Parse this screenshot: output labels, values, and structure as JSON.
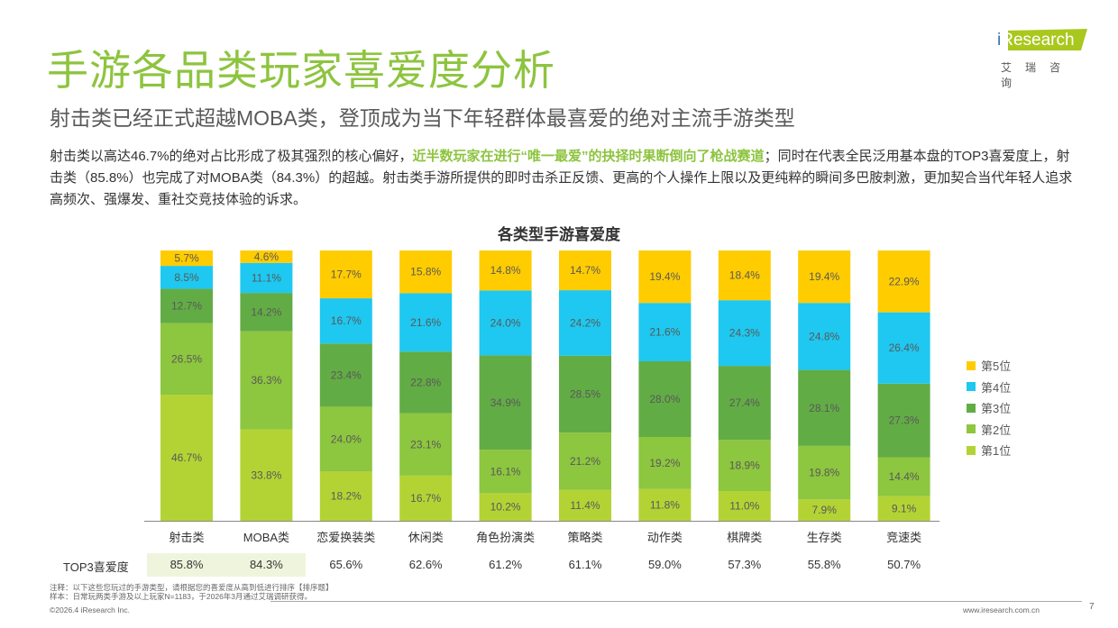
{
  "header": {
    "title": "手游各品类玩家喜爱度分析",
    "subtitle": "射击类已经正式超越MOBA类，登顶成为当下年轻群体最喜爱的绝对主流手游类型",
    "body_1": "射击类以高达46.7%的绝对占比形成了极其强烈的核心偏好，",
    "body_highlight": "近半数玩家在进行“唯一最爱”的抉择时果断倒向了枪战赛道",
    "body_2": "；同时在代表全民泛用基本盘的TOP3喜爱度上，射击类（85.8%）也完成了对MOBA类（84.3%）的超越。射击类手游所提供的即时击杀正反馈、更高的个人操作上限以及更纯粹的瞬间多巴胺刺激，更加契合当代年轻人追求高频次、强爆发、重社交竞技体验的诉求。"
  },
  "logo": {
    "brand": "iResearch",
    "cn": "艾瑞咨询"
  },
  "chart_data": {
    "type": "bar",
    "stacked": true,
    "title": "各类型手游喜爱度",
    "ylim": [
      0,
      100
    ],
    "grid": false,
    "legend_position": "right",
    "categories": [
      "射击类",
      "MOBA类",
      "恋爱换装类",
      "休闲类",
      "角色扮演类",
      "策略类",
      "动作类",
      "棋牌类",
      "生存类",
      "竞速类"
    ],
    "series": [
      {
        "name": "第1位",
        "color": "#B3D335",
        "values": [
          46.7,
          33.8,
          18.2,
          16.7,
          10.2,
          11.4,
          11.8,
          11.0,
          7.9,
          9.1
        ]
      },
      {
        "name": "第2位",
        "color": "#8DC63F",
        "values": [
          26.5,
          36.3,
          24.0,
          23.1,
          16.1,
          21.2,
          19.2,
          18.9,
          19.8,
          14.4
        ]
      },
      {
        "name": "第3位",
        "color": "#62AC45",
        "values": [
          12.7,
          14.2,
          23.4,
          22.8,
          34.9,
          28.5,
          28.0,
          27.4,
          28.1,
          27.3
        ]
      },
      {
        "name": "第4位",
        "color": "#1EC8F0",
        "values": [
          8.5,
          11.1,
          16.7,
          21.6,
          24.0,
          24.2,
          21.6,
          24.3,
          24.8,
          26.4
        ]
      },
      {
        "name": "第5位",
        "color": "#FFCC00",
        "values": [
          5.7,
          4.6,
          17.7,
          15.8,
          14.8,
          14.7,
          19.4,
          18.4,
          19.4,
          22.9
        ]
      }
    ],
    "top3": {
      "label": "TOP3喜爱度",
      "values": [
        "85.8%",
        "84.3%",
        "65.6%",
        "62.6%",
        "61.2%",
        "61.1%",
        "59.0%",
        "57.3%",
        "55.8%",
        "50.7%"
      ],
      "highlight_color": "#EEF5DC"
    }
  },
  "footer": {
    "note": "注释：以下这些您玩过的手游类型，请根据您的喜爱度从高到低进行排序【排序题】",
    "sample": "样本：日常玩两类手游及以上玩家N=1183，于2026年3月通过艾瑞调研获得。",
    "copyright": "©2026.4 iResearch Inc.",
    "url": "www.iresearch.com.cn",
    "page": "7"
  }
}
